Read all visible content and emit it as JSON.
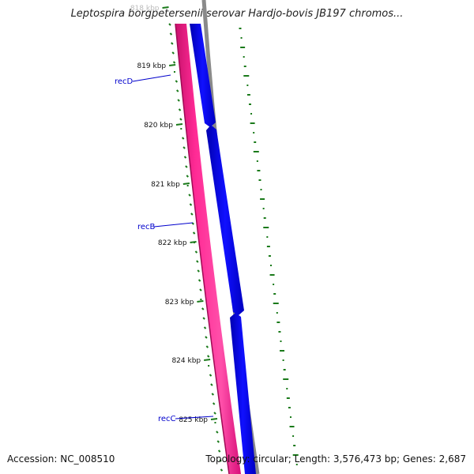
{
  "title": "Leptospira borgpetersenii serovar Hardjo-bovis JB197 chromos...",
  "footer": {
    "accession": "Accession: NC_008510",
    "summary": "Topology: circular; Length: 3,576,473 bp; Genes: 2,687"
  },
  "ticks": [
    "818 kbp",
    "819 kbp",
    "820 kbp",
    "821 kbp",
    "822 kbp",
    "823 kbp",
    "824 kbp",
    "825 kbp"
  ],
  "genes": [
    "recD",
    "recB",
    "recC"
  ],
  "colors": {
    "pink": "#ff1e8c",
    "blue": "#0000ee",
    "backbone": "#888888",
    "tick": "#1a7a1a",
    "label": "#0000cc"
  }
}
